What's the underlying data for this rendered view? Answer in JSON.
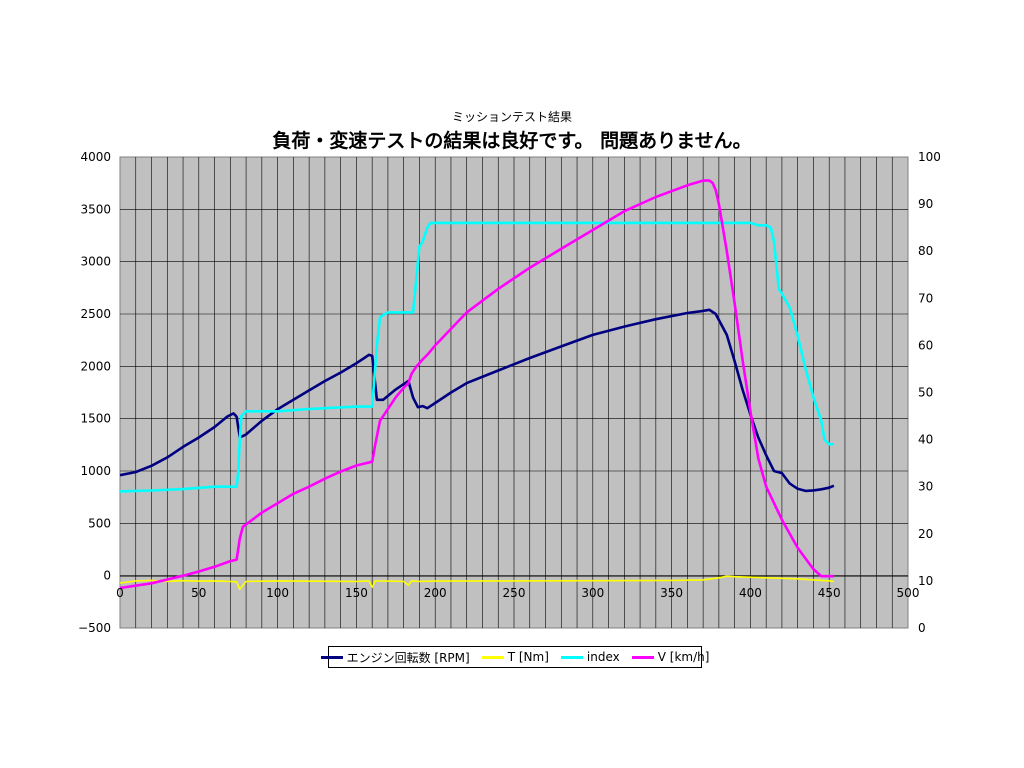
{
  "chart_data": {
    "type": "line",
    "subtitle": "ミッションテスト結果",
    "title": "負荷・変速テストの結果は良好です。 問題ありません。",
    "x_ticks": [
      "0",
      "50",
      "100",
      "150",
      "200",
      "250",
      "300",
      "350",
      "400",
      "450",
      "500"
    ],
    "y_left_ticks": [
      "4000",
      "3500",
      "3000",
      "2500",
      "2000",
      "1500",
      "1000",
      "500",
      "0",
      "−500"
    ],
    "y_right_ticks": [
      "100",
      "90",
      "80",
      "70",
      "60",
      "50",
      "40",
      "30",
      "20",
      "10",
      "0"
    ],
    "xlim": [
      0,
      500
    ],
    "ylim_left": [
      -500,
      4000
    ],
    "ylim_right": [
      0,
      100
    ],
    "grid": true,
    "plot_background": "#c0c0c0",
    "legend_position": "bottom",
    "series": [
      {
        "name": "エンジン回転数 [RPM]",
        "axis": "left",
        "color": "#000080",
        "x": [
          0,
          10,
          20,
          30,
          40,
          50,
          60,
          68,
          72,
          74,
          76,
          80,
          90,
          100,
          110,
          120,
          130,
          140,
          150,
          155,
          158,
          160,
          163,
          167,
          175,
          180,
          183,
          186,
          189,
          192,
          195,
          200,
          210,
          220,
          240,
          260,
          280,
          300,
          320,
          340,
          360,
          370,
          374,
          378,
          385,
          390,
          395,
          400,
          405,
          410,
          415,
          420,
          425,
          430,
          435,
          440,
          445,
          450,
          453
        ],
        "values": [
          960,
          990,
          1050,
          1130,
          1230,
          1320,
          1420,
          1520,
          1550,
          1520,
          1320,
          1350,
          1480,
          1590,
          1680,
          1770,
          1860,
          1940,
          2030,
          2080,
          2110,
          2100,
          1680,
          1680,
          1780,
          1830,
          1860,
          1700,
          1610,
          1620,
          1600,
          1650,
          1750,
          1840,
          1960,
          2080,
          2190,
          2300,
          2380,
          2450,
          2510,
          2530,
          2540,
          2500,
          2300,
          2050,
          1780,
          1540,
          1320,
          1150,
          1000,
          980,
          880,
          830,
          810,
          815,
          825,
          840,
          860
        ]
      },
      {
        "name": "T [Nm]",
        "axis": "left",
        "color": "#ffff00",
        "x": [
          0,
          10,
          20,
          30,
          40,
          50,
          60,
          70,
          74,
          76,
          80,
          100,
          150,
          158,
          160,
          162,
          170,
          180,
          183,
          185,
          190,
          200,
          250,
          300,
          350,
          370,
          380,
          385,
          390,
          400,
          410,
          420,
          430,
          440,
          450,
          453
        ],
        "values": [
          -70,
          -50,
          -45,
          -55,
          -48,
          -52,
          -50,
          -55,
          -60,
          -130,
          -55,
          -50,
          -55,
          -50,
          -110,
          -50,
          -52,
          -55,
          -90,
          -50,
          -55,
          -52,
          -50,
          -48,
          -45,
          -40,
          -20,
          -5,
          -10,
          -15,
          -20,
          -25,
          -30,
          -40,
          -50,
          -55
        ]
      },
      {
        "name": "index",
        "axis": "right",
        "color": "#00ffff",
        "x": [
          0,
          20,
          40,
          60,
          74,
          75,
          76,
          77,
          80,
          100,
          120,
          150,
          160,
          163,
          165,
          170,
          180,
          186,
          190,
          192,
          195,
          197,
          200,
          250,
          300,
          350,
          370,
          380,
          390,
          400,
          405,
          410,
          413,
          415,
          418,
          420,
          425,
          430,
          435,
          440,
          445,
          447,
          450,
          453
        ],
        "values": [
          29,
          29.2,
          29.5,
          30,
          30,
          33,
          40,
          45,
          46,
          46,
          46.5,
          47,
          47,
          60,
          66,
          67,
          67,
          67,
          81,
          82,
          85,
          86,
          86,
          86,
          86,
          86,
          86,
          86,
          86,
          86,
          85.5,
          85.5,
          85,
          82,
          72,
          71,
          68,
          62,
          55,
          49,
          44,
          40,
          39,
          39
        ]
      },
      {
        "name": "V [km/h]",
        "axis": "right",
        "color": "#ff00ff",
        "x": [
          0,
          10,
          20,
          30,
          40,
          50,
          60,
          70,
          74,
          76,
          78,
          80,
          90,
          100,
          110,
          120,
          130,
          140,
          150,
          160,
          162,
          165,
          170,
          175,
          180,
          183,
          185,
          188,
          192,
          195,
          200,
          210,
          220,
          240,
          260,
          280,
          300,
          320,
          340,
          360,
          370,
          374,
          376,
          378,
          380,
          385,
          390,
          395,
          400,
          405,
          410,
          420,
          430,
          440,
          445,
          450,
          453
        ],
        "values": [
          8.5,
          9,
          9.5,
          10.3,
          11.1,
          12,
          13,
          14.2,
          14.5,
          19,
          21.5,
          22,
          24.5,
          26.5,
          28.5,
          30,
          31.7,
          33.2,
          34.5,
          35.3,
          39,
          44,
          46.5,
          49,
          51,
          52,
          54,
          55.5,
          57,
          58,
          60,
          63.5,
          67,
          72,
          76.5,
          80.5,
          84.5,
          88.5,
          91.5,
          94,
          95,
          95,
          94.5,
          93,
          90,
          80,
          69,
          57,
          46,
          36,
          30,
          23,
          17,
          12.5,
          11,
          11,
          11
        ]
      }
    ]
  }
}
